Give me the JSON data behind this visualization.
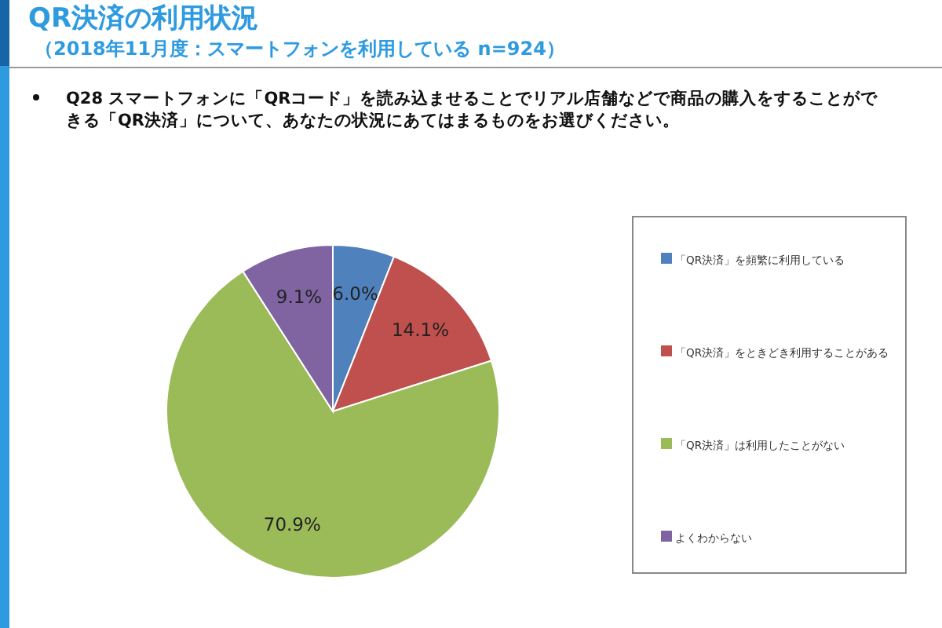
{
  "chart_data": {
    "type": "pie",
    "title": "QR決済の利用状況",
    "subtitle": "（2018年11月度：スマートフォンを利用している n=924）",
    "annotations": [
      "Q28 スマートフォンに「QRコード」を読み込ませることでリアル店舗などで商品の購入をすることができる「QR決済」について、あなたの状況にあてはまるものをお選びください。"
    ],
    "categories": [
      "「QR決済」を頻繁に利用している",
      "「QR決済」をときどき利用することがある",
      "「QR決済」は利用したことがない",
      "よくわからない"
    ],
    "values": [
      6.0,
      14.1,
      70.9,
      9.1
    ],
    "colors": [
      "#4f81bd",
      "#c0504d",
      "#9bbb59",
      "#8064a2"
    ],
    "value_labels": [
      "6.0%",
      "14.1%",
      "70.9%",
      "9.1%"
    ],
    "legend": "right"
  }
}
